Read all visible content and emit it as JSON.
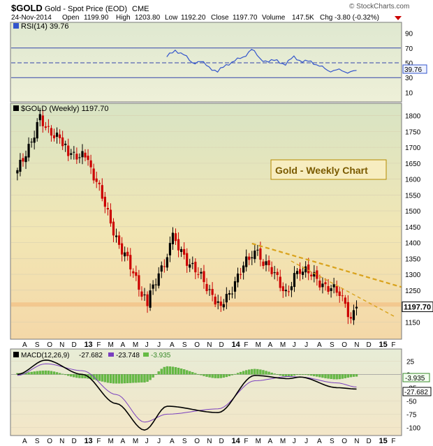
{
  "header": {
    "symbol": "$GOLD",
    "name": "Gold - Spot Price (EOD)",
    "exchange": "CME",
    "copyright": "© StockCharts.com",
    "date": "24-Nov-2014",
    "open_label": "Open",
    "open": "1199.90",
    "high_label": "High",
    "high": "1203.80",
    "low_label": "Low",
    "low": "1192.20",
    "close_label": "Close",
    "close": "1197.70",
    "volume_label": "Volume",
    "volume": "147.5K",
    "chg_label": "Chg",
    "chg": "-3.80 (-0.32%)"
  },
  "colors": {
    "up": "#000000",
    "down": "#cc0000",
    "trendline": "#d9a21b",
    "rsi": "#3355cc",
    "macd_line": "#000000",
    "macd_signal": "#7a3fbf",
    "histogram": "#66bb44",
    "support": "#f2c48a",
    "annotation_border": "#b58a00",
    "annotation_text": "#7a5a00"
  },
  "chart_data": [
    {
      "type": "line",
      "panel": "rsi",
      "legend": "RSI(14) 39.76",
      "current_value": "39.76",
      "ylim": [
        0,
        100
      ],
      "y_ticks": [
        10,
        30,
        50,
        70,
        90
      ],
      "reference_lines": [
        30,
        50,
        70
      ],
      "series": [
        {
          "x": [
            "2013-08-11",
            "2013-09-01",
            "2013-09-22",
            "2013-10-13",
            "2013-11-03",
            "2013-11-24",
            "2013-12-15",
            "2014-01-05",
            "2014-01-26",
            "2014-02-16",
            "2014-03-09",
            "2014-03-30",
            "2014-04-20",
            "2014-05-11",
            "2014-06-01",
            "2014-06-22",
            "2014-07-13",
            "2014-08-03",
            "2014-08-24",
            "2014-09-14",
            "2014-10-05",
            "2014-10-26",
            "2014-11-16",
            "2014-11-24"
          ],
          "values": [
            58,
            67,
            61,
            50,
            52,
            44,
            38,
            47,
            53,
            57,
            69,
            55,
            52,
            53,
            48,
            58,
            52,
            51,
            47,
            38,
            42,
            36,
            41,
            39.76
          ]
        }
      ]
    },
    {
      "type": "candlestick",
      "panel": "price",
      "legend": "$GOLD (Weekly) 1197.70",
      "annotation": "Gold - Weekly Chart",
      "last_price": "1197.70",
      "ylim": [
        1100,
        1830
      ],
      "y_ticks": [
        1150,
        1200,
        1250,
        1300,
        1350,
        1400,
        1450,
        1500,
        1550,
        1600,
        1650,
        1700,
        1750,
        1800
      ],
      "x_tick_labels": [
        "A",
        "S",
        "O",
        "N",
        "D",
        "13",
        "F",
        "M",
        "A",
        "M",
        "J",
        "J",
        "A",
        "S",
        "O",
        "N",
        "D",
        "14",
        "F",
        "M",
        "A",
        "M",
        "J",
        "J",
        "A",
        "S",
        "O",
        "N",
        "D",
        "15",
        "F"
      ],
      "support_level": 1205,
      "trendlines": [
        {
          "start": [
            "2014-03-10",
            1397
          ],
          "end": [
            "2015-03-15",
            1260
          ]
        },
        {
          "start": [
            "2014-06-15",
            1342
          ],
          "end": [
            "2015-03-01",
            1165
          ]
        }
      ],
      "key_points": {
        "x": [
          "2012-08-06",
          "2012-10-01",
          "2012-12-10",
          "2013-01-28",
          "2013-04-15",
          "2013-06-24",
          "2013-08-26",
          "2013-12-23",
          "2014-03-17",
          "2014-06-02",
          "2014-07-07",
          "2014-10-20",
          "2014-11-03",
          "2014-11-24"
        ],
        "values": [
          1620,
          1790,
          1690,
          1660,
          1395,
          1210,
          1410,
          1200,
          1382,
          1245,
          1320,
          1230,
          1150,
          1197.7
        ]
      }
    },
    {
      "type": "line",
      "panel": "macd",
      "legend_label": "MACD(12,26,9)",
      "legend_values": [
        "-27.682",
        "-23.748",
        "-3.935"
      ],
      "ylim": [
        -110,
        40
      ],
      "y_ticks": [
        25,
        0,
        -25,
        -50,
        -75,
        -100
      ],
      "current_labels": [
        "-3.935",
        "-27.682"
      ],
      "series": [
        {
          "name": "MACD(12,26,9)",
          "x": [
            "2012-08-06",
            "2012-10-15",
            "2013-01-14",
            "2013-04-08",
            "2013-06-17",
            "2013-08-12",
            "2013-12-16",
            "2014-03-17",
            "2014-06-09",
            "2014-07-07",
            "2014-10-06",
            "2014-11-24"
          ],
          "values": [
            0,
            27,
            0,
            -55,
            -105,
            -60,
            -72,
            -2,
            -8,
            -5,
            -25,
            -27.682
          ]
        },
        {
          "name": "Signal",
          "x": [
            "2012-08-06",
            "2012-10-15",
            "2013-01-14",
            "2013-04-08",
            "2013-06-17",
            "2013-08-12",
            "2013-12-16",
            "2014-03-17",
            "2014-06-09",
            "2014-07-07",
            "2014-10-06",
            "2014-11-24"
          ],
          "values": [
            -2,
            20,
            7,
            -38,
            -90,
            -75,
            -65,
            -12,
            -4,
            -5,
            -16,
            -23.748
          ]
        }
      ]
    }
  ]
}
